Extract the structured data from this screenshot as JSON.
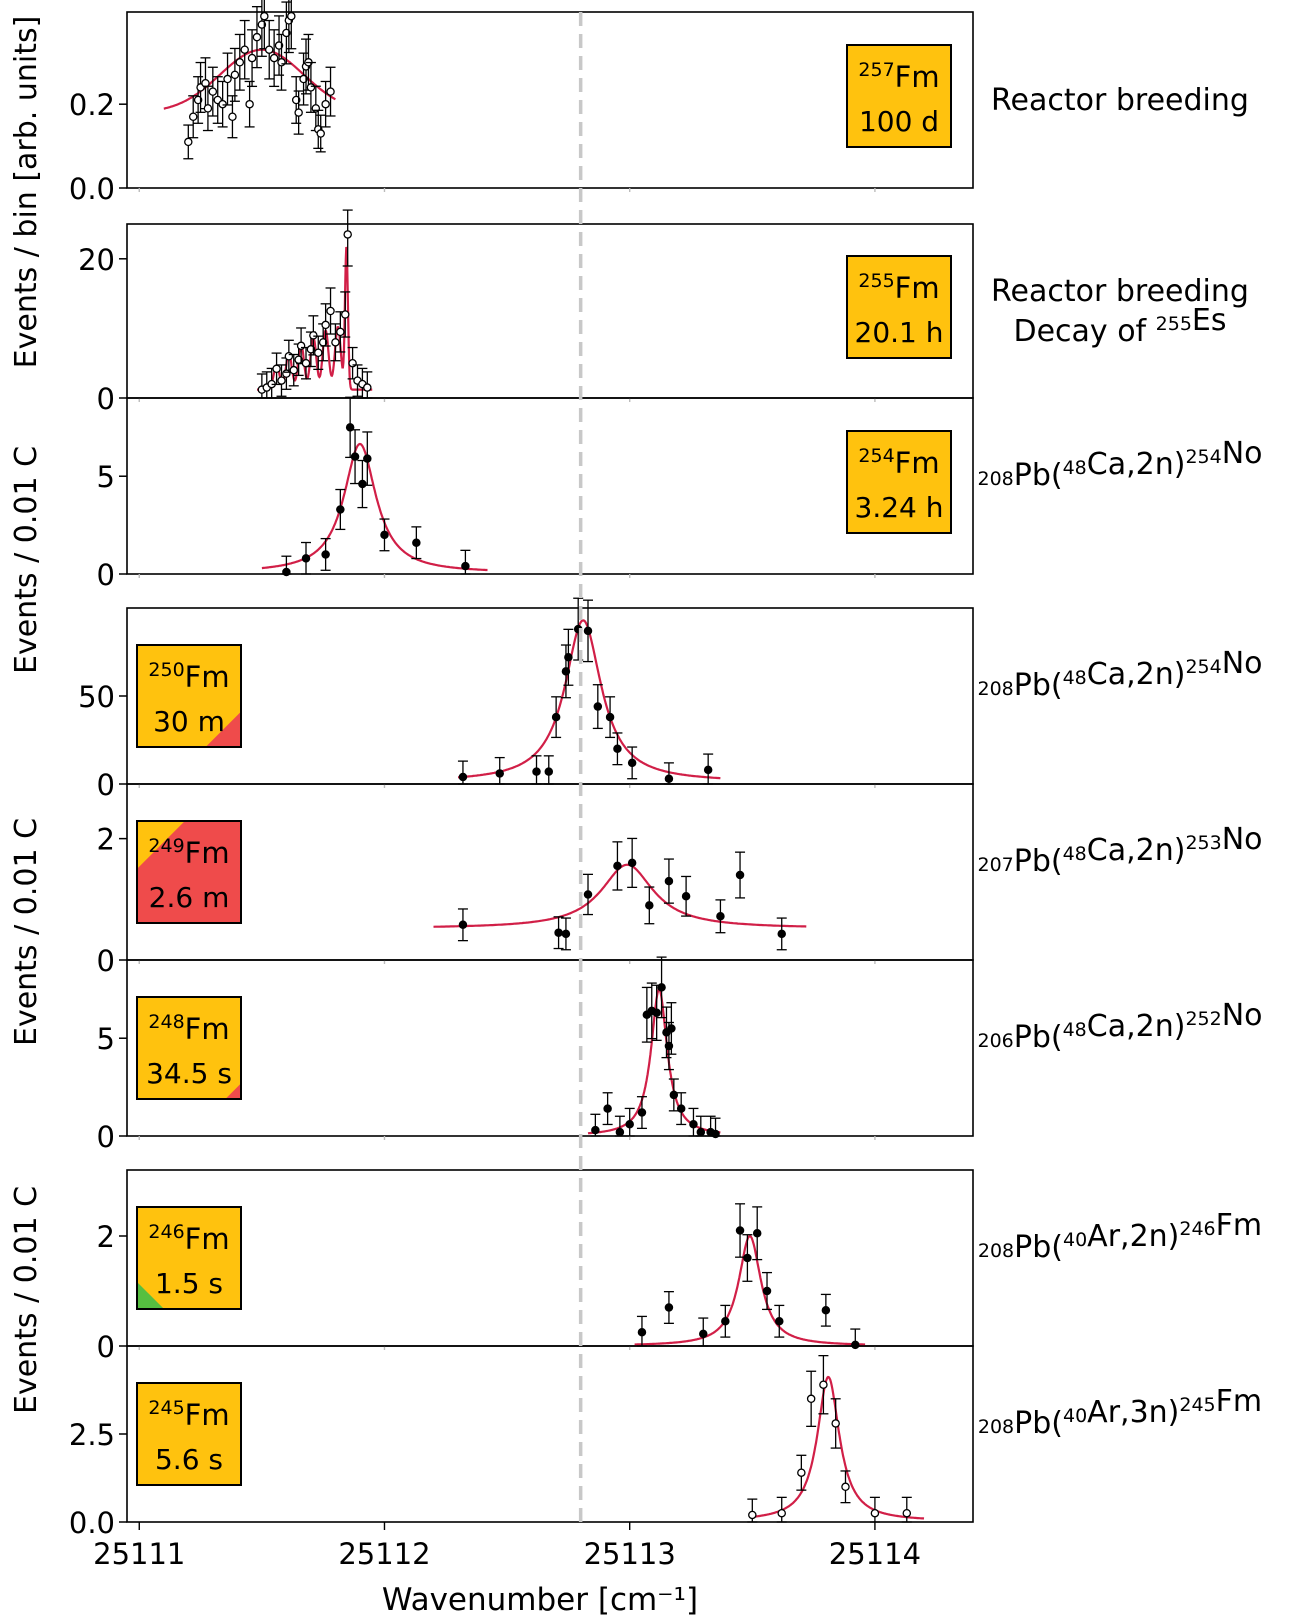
{
  "chart_data": {
    "type": "scatter",
    "xlabel": "Wavenumber [cm⁻¹]",
    "xlim": [
      25110.95,
      25114.4
    ],
    "xticks": [
      "25111",
      "25112",
      "25113",
      "25114"
    ],
    "reference_line_x": 25112.8,
    "ylabels": {
      "top": "Events / bin [arb. units]",
      "middle": "Events / 0.01 C",
      "lower": "Events / 0.01 C",
      "bottom": "Events / 0.01 C"
    },
    "panels": [
      {
        "isotope_mass": "257",
        "element": "Fm",
        "half_life": "100 d",
        "reaction": [
          "Reactor breeding"
        ],
        "ylim": [
          0,
          0.42
        ],
        "yticks": [
          0.0,
          0.2
        ],
        "ytick_labels": [
          "0.0",
          "0.2"
        ],
        "badge_side": "right",
        "badge_color": "#ffc20e",
        "badge_corner": null,
        "marker": "open",
        "fit": {
          "type": "gauss",
          "amp": 0.15,
          "center": 25111.5,
          "width": 0.17,
          "offset": 0.18,
          "xmin": 25111.1,
          "xmax": 25111.8
        },
        "points": [
          [
            25111.2,
            0.11
          ],
          [
            25111.22,
            0.17
          ],
          [
            25111.24,
            0.21
          ],
          [
            25111.25,
            0.24
          ],
          [
            25111.27,
            0.25
          ],
          [
            25111.28,
            0.19
          ],
          [
            25111.3,
            0.23
          ],
          [
            25111.32,
            0.21
          ],
          [
            25111.34,
            0.2
          ],
          [
            25111.36,
            0.26
          ],
          [
            25111.38,
            0.17
          ],
          [
            25111.39,
            0.27
          ],
          [
            25111.41,
            0.3
          ],
          [
            25111.43,
            0.33
          ],
          [
            25111.45,
            0.2
          ],
          [
            25111.46,
            0.31
          ],
          [
            25111.48,
            0.36
          ],
          [
            25111.5,
            0.39
          ],
          [
            25111.51,
            0.41
          ],
          [
            25111.53,
            0.33
          ],
          [
            25111.55,
            0.31
          ],
          [
            25111.57,
            0.34
          ],
          [
            25111.58,
            0.3
          ],
          [
            25111.6,
            0.37
          ],
          [
            25111.61,
            0.4
          ],
          [
            25111.62,
            0.41
          ],
          [
            25111.64,
            0.21
          ],
          [
            25111.65,
            0.18
          ],
          [
            25111.67,
            0.26
          ],
          [
            25111.68,
            0.29
          ],
          [
            25111.69,
            0.3
          ],
          [
            25111.7,
            0.24
          ],
          [
            25111.72,
            0.19
          ],
          [
            25111.73,
            0.14
          ],
          [
            25111.74,
            0.13
          ],
          [
            25111.76,
            0.2
          ],
          [
            25111.78,
            0.23
          ]
        ]
      },
      {
        "isotope_mass": "255",
        "element": "Fm",
        "half_life": "20.1 h",
        "reaction": [
          "Reactor breeding",
          "Decay of 255Es"
        ],
        "ylim": [
          0,
          25
        ],
        "yticks": [
          0,
          20
        ],
        "ytick_labels": [
          "0",
          "20"
        ],
        "badge_side": "right",
        "badge_color": "#ffc20e",
        "badge_corner": null,
        "marker": "open",
        "fit": {
          "type": "multiplet",
          "offset": 1.2,
          "xmin": 25111.48,
          "xmax": 25111.95,
          "peaks": [
            [
              25111.56,
              3.5,
              0.012
            ],
            [
              25111.61,
              5.2,
              0.012
            ],
            [
              25111.66,
              6.5,
              0.012
            ],
            [
              25111.71,
              7.5,
              0.012
            ],
            [
              25111.76,
              8.5,
              0.012
            ],
            [
              25111.81,
              9.0,
              0.012
            ],
            [
              25111.845,
              20.5,
              0.006
            ]
          ]
        },
        "points": [
          [
            25111.5,
            1.2
          ],
          [
            25111.52,
            1.5
          ],
          [
            25111.54,
            2.0
          ],
          [
            25111.56,
            4.2
          ],
          [
            25111.58,
            2.5
          ],
          [
            25111.6,
            3.5
          ],
          [
            25111.61,
            6.0
          ],
          [
            25111.63,
            4.0
          ],
          [
            25111.65,
            5.5
          ],
          [
            25111.66,
            7.5
          ],
          [
            25111.68,
            5.0
          ],
          [
            25111.7,
            7.0
          ],
          [
            25111.71,
            9.0
          ],
          [
            25111.73,
            6.5
          ],
          [
            25111.75,
            8.0
          ],
          [
            25111.76,
            10.5
          ],
          [
            25111.78,
            12.5
          ],
          [
            25111.8,
            8.0
          ],
          [
            25111.82,
            9.5
          ],
          [
            25111.84,
            12.0
          ],
          [
            25111.85,
            23.5
          ],
          [
            25111.87,
            5.0
          ],
          [
            25111.89,
            2.5
          ],
          [
            25111.91,
            2.0
          ],
          [
            25111.93,
            1.5
          ]
        ]
      },
      {
        "isotope_mass": "254",
        "element": "Fm",
        "half_life": "3.24 h",
        "reaction": [
          "208Pb(48Ca,2n)254No"
        ],
        "ylim": [
          0,
          9
        ],
        "yticks": [
          0,
          5
        ],
        "ytick_labels": [
          "0",
          "5"
        ],
        "badge_side": "right",
        "badge_color": "#ffc20e",
        "badge_corner": null,
        "marker": "filled",
        "fit": {
          "type": "lorentz",
          "amp": 6.6,
          "center": 25111.9,
          "gamma": 0.08,
          "offset": 0.05,
          "xmin": 25111.5,
          "xmax": 25112.42
        },
        "points": [
          [
            25111.6,
            0.1
          ],
          [
            25111.68,
            0.8
          ],
          [
            25111.76,
            1.0
          ],
          [
            25111.82,
            3.3
          ],
          [
            25111.86,
            7.5
          ],
          [
            25111.88,
            6.0
          ],
          [
            25111.91,
            4.6
          ],
          [
            25111.93,
            5.9
          ],
          [
            25112.0,
            2.0
          ],
          [
            25112.13,
            1.6
          ],
          [
            25112.33,
            0.4
          ]
        ]
      },
      {
        "isotope_mass": "250",
        "element": "Fm",
        "half_life": "30 m",
        "reaction": [
          "208Pb(48Ca,2n)254No"
        ],
        "ylim": [
          0,
          100
        ],
        "yticks": [
          0,
          50
        ],
        "ytick_labels": [
          "0",
          "50"
        ],
        "badge_side": "left",
        "badge_color": "#ffc20e",
        "badge_corner": {
          "color": "#ef4b4b",
          "size": 0.34
        },
        "marker": "filled",
        "fit": {
          "type": "lorentz",
          "amp": 92,
          "center": 25112.81,
          "gamma": 0.09,
          "offset": 1.0,
          "xmin": 25112.3,
          "xmax": 25113.37
        },
        "points": [
          [
            25112.32,
            4
          ],
          [
            25112.47,
            6
          ],
          [
            25112.62,
            7
          ],
          [
            25112.67,
            7
          ],
          [
            25112.7,
            38
          ],
          [
            25112.74,
            64
          ],
          [
            25112.75,
            72
          ],
          [
            25112.79,
            88
          ],
          [
            25112.83,
            87
          ],
          [
            25112.87,
            44
          ],
          [
            25112.92,
            38
          ],
          [
            25112.95,
            20
          ],
          [
            25113.01,
            12
          ],
          [
            25113.16,
            3
          ],
          [
            25113.32,
            8
          ]
        ]
      },
      {
        "isotope_mass": "249",
        "element": "Fm",
        "half_life": "2.6 m",
        "reaction": [
          "207Pb(48Ca,2n)253No"
        ],
        "ylim": [
          0,
          2.9
        ],
        "yticks": [
          0,
          2
        ],
        "ytick_labels": [
          "0",
          "2"
        ],
        "badge_side": "left",
        "badge_color": "#ef4b4b",
        "badge_corner": {
          "color": "#ffc20e",
          "size": 0.46,
          "corner": "top-left"
        },
        "marker": "filled",
        "fit": {
          "type": "lorentz",
          "amp": 1.05,
          "center": 25112.99,
          "gamma": 0.13,
          "offset": 0.52,
          "xmin": 25112.2,
          "xmax": 25113.72
        },
        "points": [
          [
            25112.32,
            0.58
          ],
          [
            25112.71,
            0.45
          ],
          [
            25112.74,
            0.43
          ],
          [
            25112.83,
            1.08
          ],
          [
            25112.95,
            1.55
          ],
          [
            25113.01,
            1.6
          ],
          [
            25113.08,
            0.9
          ],
          [
            25113.16,
            1.3
          ],
          [
            25113.23,
            1.05
          ],
          [
            25113.37,
            0.72
          ],
          [
            25113.45,
            1.4
          ],
          [
            25113.62,
            0.43
          ]
        ]
      },
      {
        "isotope_mass": "248",
        "element": "Fm",
        "half_life": "34.5 s",
        "reaction": [
          "206Pb(48Ca,2n)252No"
        ],
        "ylim": [
          0,
          9
        ],
        "yticks": [
          0,
          5
        ],
        "ytick_labels": [
          "0",
          "5"
        ],
        "badge_side": "left",
        "badge_color": "#ffc20e",
        "badge_corner": {
          "color": "#ef4b4b",
          "size": 0.15
        },
        "marker": "filled",
        "fit": {
          "type": "lorentz",
          "amp": 7.5,
          "center": 25113.12,
          "gamma": 0.04,
          "offset": 0,
          "xmin": 25112.83,
          "xmax": 25113.37
        },
        "points": [
          [
            25112.86,
            0.3
          ],
          [
            25112.91,
            1.4
          ],
          [
            25112.96,
            0.2
          ],
          [
            25113.0,
            0.6
          ],
          [
            25113.05,
            1.2
          ],
          [
            25113.07,
            6.2
          ],
          [
            25113.09,
            6.4
          ],
          [
            25113.11,
            6.3
          ],
          [
            25113.13,
            7.6
          ],
          [
            25113.15,
            5.3
          ],
          [
            25113.16,
            4.6
          ],
          [
            25113.17,
            5.5
          ],
          [
            25113.18,
            2.1
          ],
          [
            25113.21,
            1.4
          ],
          [
            25113.26,
            0.6
          ],
          [
            25113.29,
            0.2
          ],
          [
            25113.33,
            0.2
          ],
          [
            25113.35,
            0.1
          ]
        ]
      },
      {
        "isotope_mass": "246",
        "element": "Fm",
        "half_life": "1.5 s",
        "reaction": [
          "208Pb(40Ar,2n)246Fm"
        ],
        "ylim": [
          0,
          3.2
        ],
        "yticks": [
          0,
          2
        ],
        "ytick_labels": [
          "0",
          "2"
        ],
        "badge_side": "left",
        "badge_color": "#ffc20e",
        "badge_corner": {
          "color": "#56bf40",
          "size": 0.26
        },
        "marker": "filled",
        "fit": {
          "type": "lorentz",
          "amp": 2.0,
          "center": 25113.49,
          "gamma": 0.055,
          "offset": 0,
          "xmin": 25113.02,
          "xmax": 25113.96
        },
        "points": [
          [
            25113.05,
            0.25
          ],
          [
            25113.16,
            0.7
          ],
          [
            25113.3,
            0.22
          ],
          [
            25113.39,
            0.45
          ],
          [
            25113.45,
            2.1
          ],
          [
            25113.48,
            1.6
          ],
          [
            25113.52,
            2.05
          ],
          [
            25113.56,
            1.0
          ],
          [
            25113.61,
            0.45
          ],
          [
            25113.8,
            0.65
          ],
          [
            25113.92,
            0.02
          ]
        ]
      },
      {
        "isotope_mass": "245",
        "element": "Fm",
        "half_life": "5.6 s",
        "reaction": [
          "208Pb(40Ar,3n)245Fm"
        ],
        "ylim": [
          0,
          5.0
        ],
        "yticks": [
          0,
          2.5
        ],
        "ytick_labels": [
          "0.0",
          "2.5"
        ],
        "badge_side": "left",
        "badge_color": "#ffc20e",
        "badge_corner": null,
        "marker": "open",
        "fit": {
          "type": "lorentz",
          "amp": 4.1,
          "center": 25113.81,
          "gamma": 0.055,
          "offset": 0.02,
          "xmin": 25113.5,
          "xmax": 25114.2
        },
        "points": [
          [
            25113.5,
            0.2
          ],
          [
            25113.62,
            0.25
          ],
          [
            25113.7,
            1.4
          ],
          [
            25113.74,
            3.5
          ],
          [
            25113.79,
            3.9
          ],
          [
            25113.84,
            2.8
          ],
          [
            25113.88,
            1.0
          ],
          [
            25114.0,
            0.25
          ],
          [
            25114.13,
            0.25
          ]
        ]
      }
    ]
  }
}
